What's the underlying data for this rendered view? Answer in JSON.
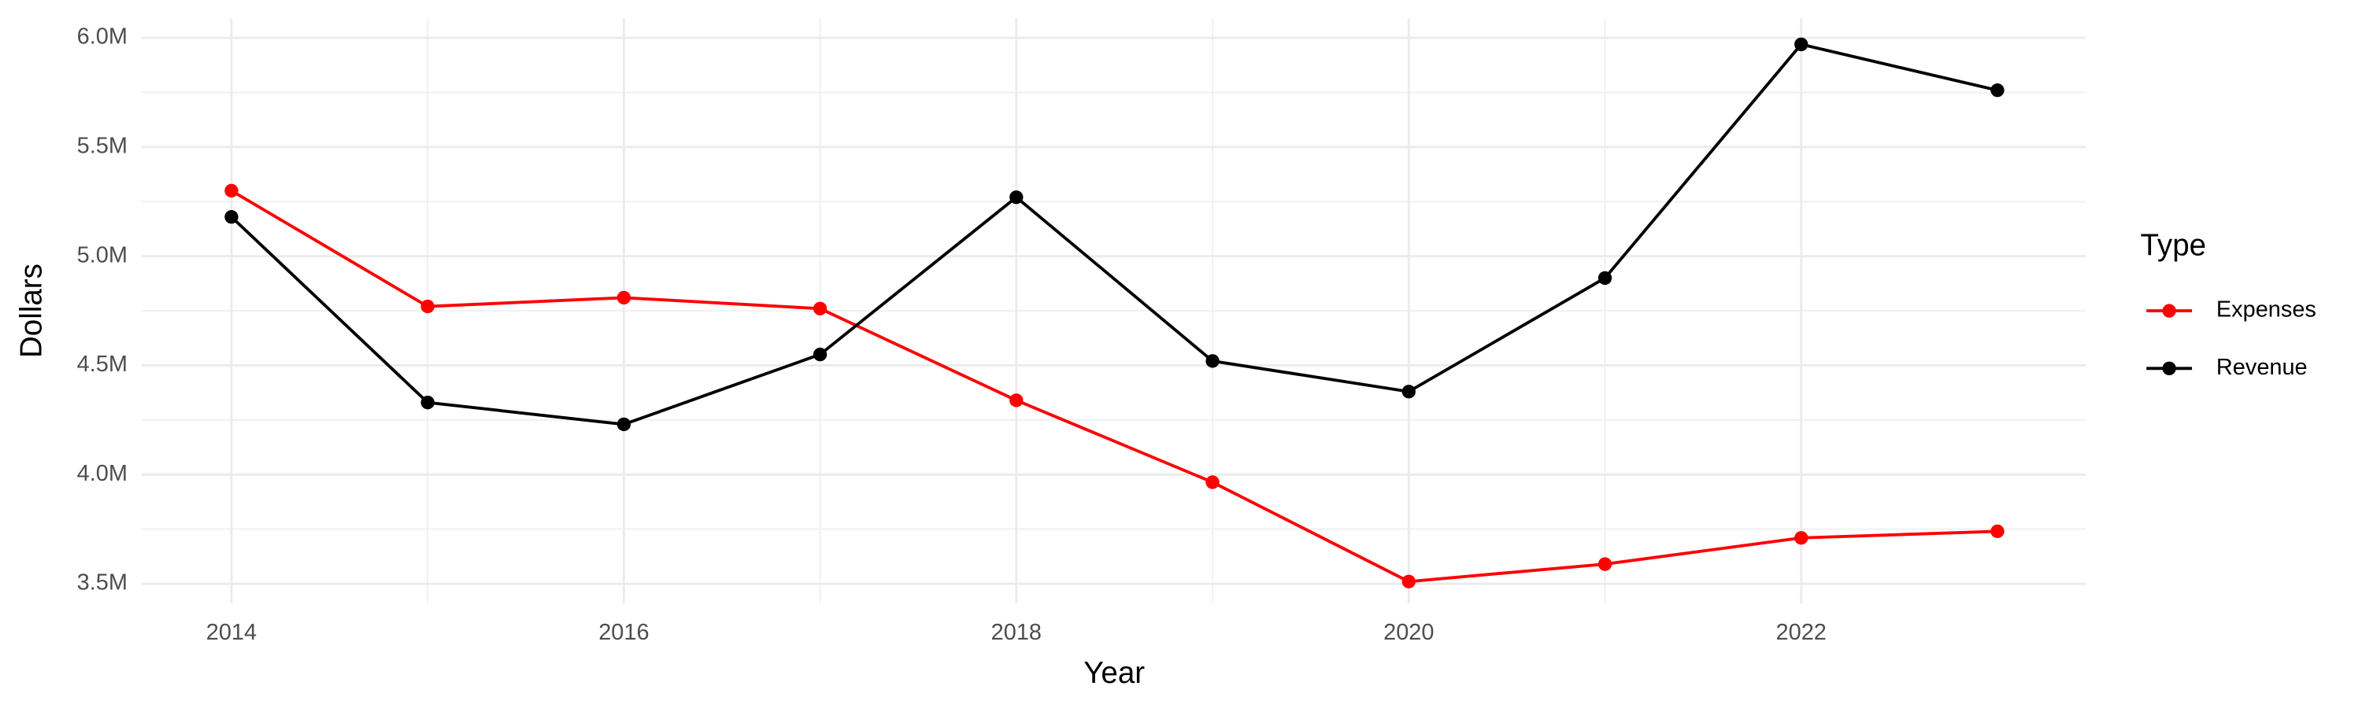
{
  "chart_data": {
    "type": "line",
    "x_label": "Year",
    "y_label": "Dollars",
    "legend_title": "Type",
    "legend": "right",
    "grid": true,
    "x": [
      2014,
      2015,
      2016,
      2017,
      2018,
      2019,
      2020,
      2021,
      2022,
      2023
    ],
    "series": [
      {
        "name": "Expenses",
        "color": "#ff0000",
        "values": [
          5300000,
          4770000,
          4810000,
          4760000,
          4340000,
          3965000,
          3510000,
          3590000,
          3710000,
          3740000
        ]
      },
      {
        "name": "Revenue",
        "color": "#000000",
        "values": [
          5180000,
          4330000,
          4230000,
          4550000,
          5270000,
          4520000,
          4380000,
          4900000,
          5970000,
          5760000
        ]
      }
    ],
    "xlim": [
      2013.54,
      2023.45
    ],
    "xticks": [
      2014,
      2016,
      2018,
      2020,
      2022
    ],
    "ylim": [
      3410000,
      6090000
    ],
    "yticks": [
      {
        "value": 3500000,
        "label": "3.5M"
      },
      {
        "value": 4000000,
        "label": "4.0M"
      },
      {
        "value": 4500000,
        "label": "4.5M"
      },
      {
        "value": 5000000,
        "label": "5.0M"
      },
      {
        "value": 5500000,
        "label": "5.5M"
      },
      {
        "value": 6000000,
        "label": "6.0M"
      }
    ]
  }
}
